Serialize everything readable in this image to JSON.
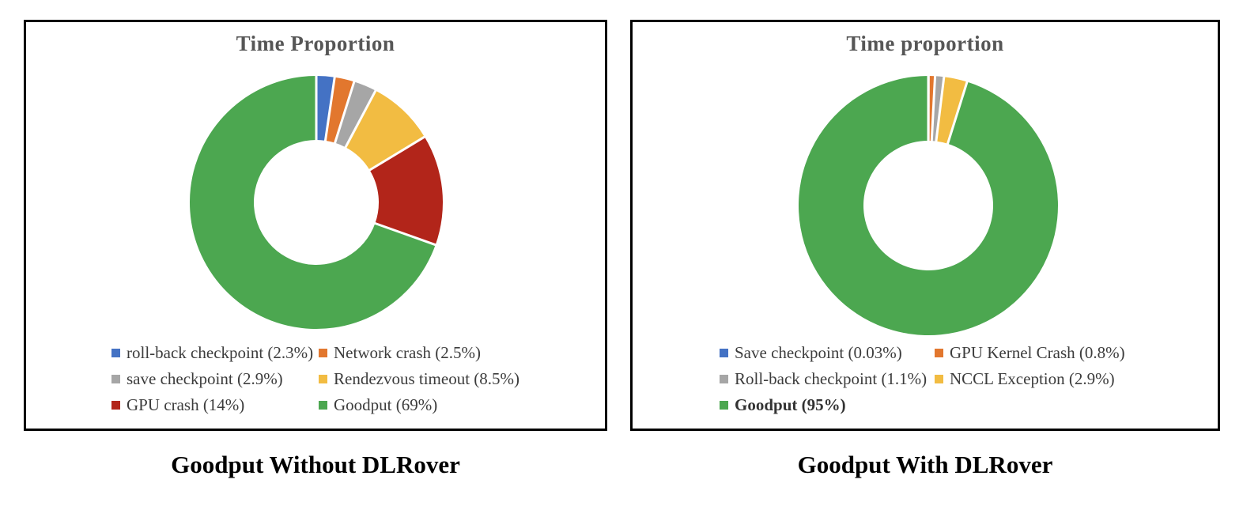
{
  "chart_data": [
    {
      "type": "pie",
      "donut": true,
      "title": "Time Proportion",
      "caption": "Goodput Without DLRover",
      "legend_position": "bottom",
      "start_angle": "top",
      "direction": "clockwise",
      "series": [
        {
          "label": "roll-back checkpoint",
          "display": "roll-back checkpoint (2.3%)",
          "value": 2.3,
          "color": "#4472C4",
          "bold": false
        },
        {
          "label": "Network crash",
          "display": "Network crash (2.5%)",
          "value": 2.5,
          "color": "#E2772E",
          "bold": false
        },
        {
          "label": "save checkpoint",
          "display": "save checkpoint (2.9%)",
          "value": 2.9,
          "color": "#A6A6A6",
          "bold": false
        },
        {
          "label": "Rendezvous timeout",
          "display": "Rendezvous timeout (8.5%)",
          "value": 8.5,
          "color": "#F2BC42",
          "bold": false
        },
        {
          "label": "GPU crash",
          "display": "GPU crash (14%)",
          "value": 14,
          "color": "#B2251A",
          "bold": false
        },
        {
          "label": "Goodput",
          "display": "Goodput (69%)",
          "value": 69,
          "color": "#4CA750",
          "bold": false
        }
      ]
    },
    {
      "type": "pie",
      "donut": true,
      "title": "Time proportion",
      "caption": "Goodput With DLRover",
      "legend_position": "bottom",
      "start_angle": "top",
      "direction": "clockwise",
      "series": [
        {
          "label": "Save checkpoint",
          "display": "Save checkpoint (0.03%)",
          "value": 0.03,
          "color": "#4472C4",
          "bold": false
        },
        {
          "label": "GPU Kernel Crash",
          "display": "GPU Kernel Crash (0.8%)",
          "value": 0.8,
          "color": "#E2772E",
          "bold": false
        },
        {
          "label": "Roll-back checkpoint",
          "display": "Roll-back checkpoint (1.1%)",
          "value": 1.1,
          "color": "#A6A6A6",
          "bold": false
        },
        {
          "label": "NCCL Exception",
          "display": "NCCL Exception (2.9%)",
          "value": 2.9,
          "color": "#F2BC42",
          "bold": false
        },
        {
          "label": "Goodput",
          "display": "Goodput (95%)",
          "value": 95,
          "color": "#4CA750",
          "bold": true
        }
      ]
    }
  ],
  "colors": {
    "panel_border": "#000000",
    "title_text": "#565656",
    "legend_text": "#3c3c3c",
    "caption_text": "#000000",
    "slice_gap": "#ffffff"
  }
}
